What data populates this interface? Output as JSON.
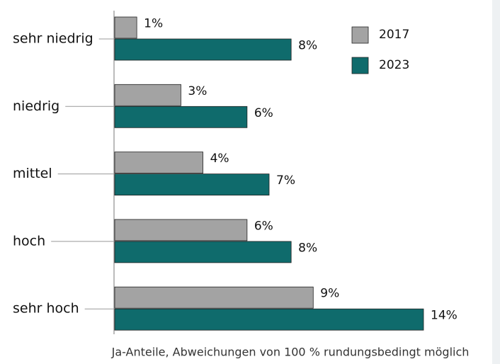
{
  "chart_data": {
    "type": "hbar",
    "categories": [
      "sehr niedrig",
      "niedrig",
      "mittel",
      "hoch",
      "sehr hoch"
    ],
    "series": [
      {
        "name": "2017",
        "color": "#a3a3a3",
        "values": [
          1,
          3,
          4,
          6,
          9
        ],
        "value_labels": [
          "1%",
          "3%",
          "4%",
          "6%",
          "9%"
        ]
      },
      {
        "name": "2023",
        "color": "#0f6b6c",
        "values": [
          8,
          6,
          7,
          8,
          14
        ],
        "value_labels": [
          "8%",
          "6%",
          "7%",
          "8%",
          "14%"
        ]
      }
    ],
    "legend": "top-right",
    "note": "Ja-Anteile, Abweichungen von 100 % rundungsbedingt möglich"
  }
}
